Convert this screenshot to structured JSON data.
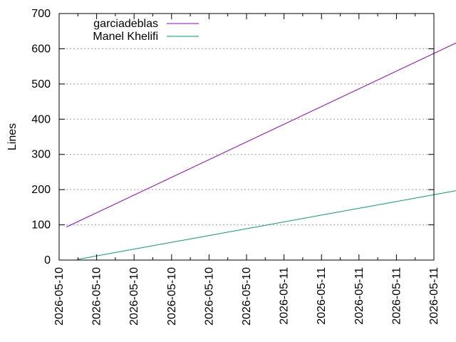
{
  "chart_data": {
    "type": "line",
    "title": "",
    "xlabel": "",
    "ylabel": "Lines",
    "ylim": [
      0,
      700
    ],
    "y_ticks": [
      0,
      100,
      200,
      300,
      400,
      500,
      600,
      700
    ],
    "x_tick_labels": [
      "2026-05-10",
      "2026-05-10",
      "2026-05-10",
      "2026-05-10",
      "2026-05-10",
      "2026-05-10",
      "2026-05-11",
      "2026-05-11",
      "2026-05-11",
      "2026-05-11",
      "2026-05-11"
    ],
    "grid": "horizontal dotted",
    "legend_position": "top-left",
    "series": [
      {
        "name": "garciadeblas",
        "color": "#9400d3",
        "x": [
          0.2,
          10.8
        ],
        "y": [
          94,
          627
        ]
      },
      {
        "name": "Manel Khelifi",
        "color": "#009e73",
        "x": [
          0.5,
          10.8
        ],
        "y": [
          2,
          201
        ]
      }
    ]
  }
}
